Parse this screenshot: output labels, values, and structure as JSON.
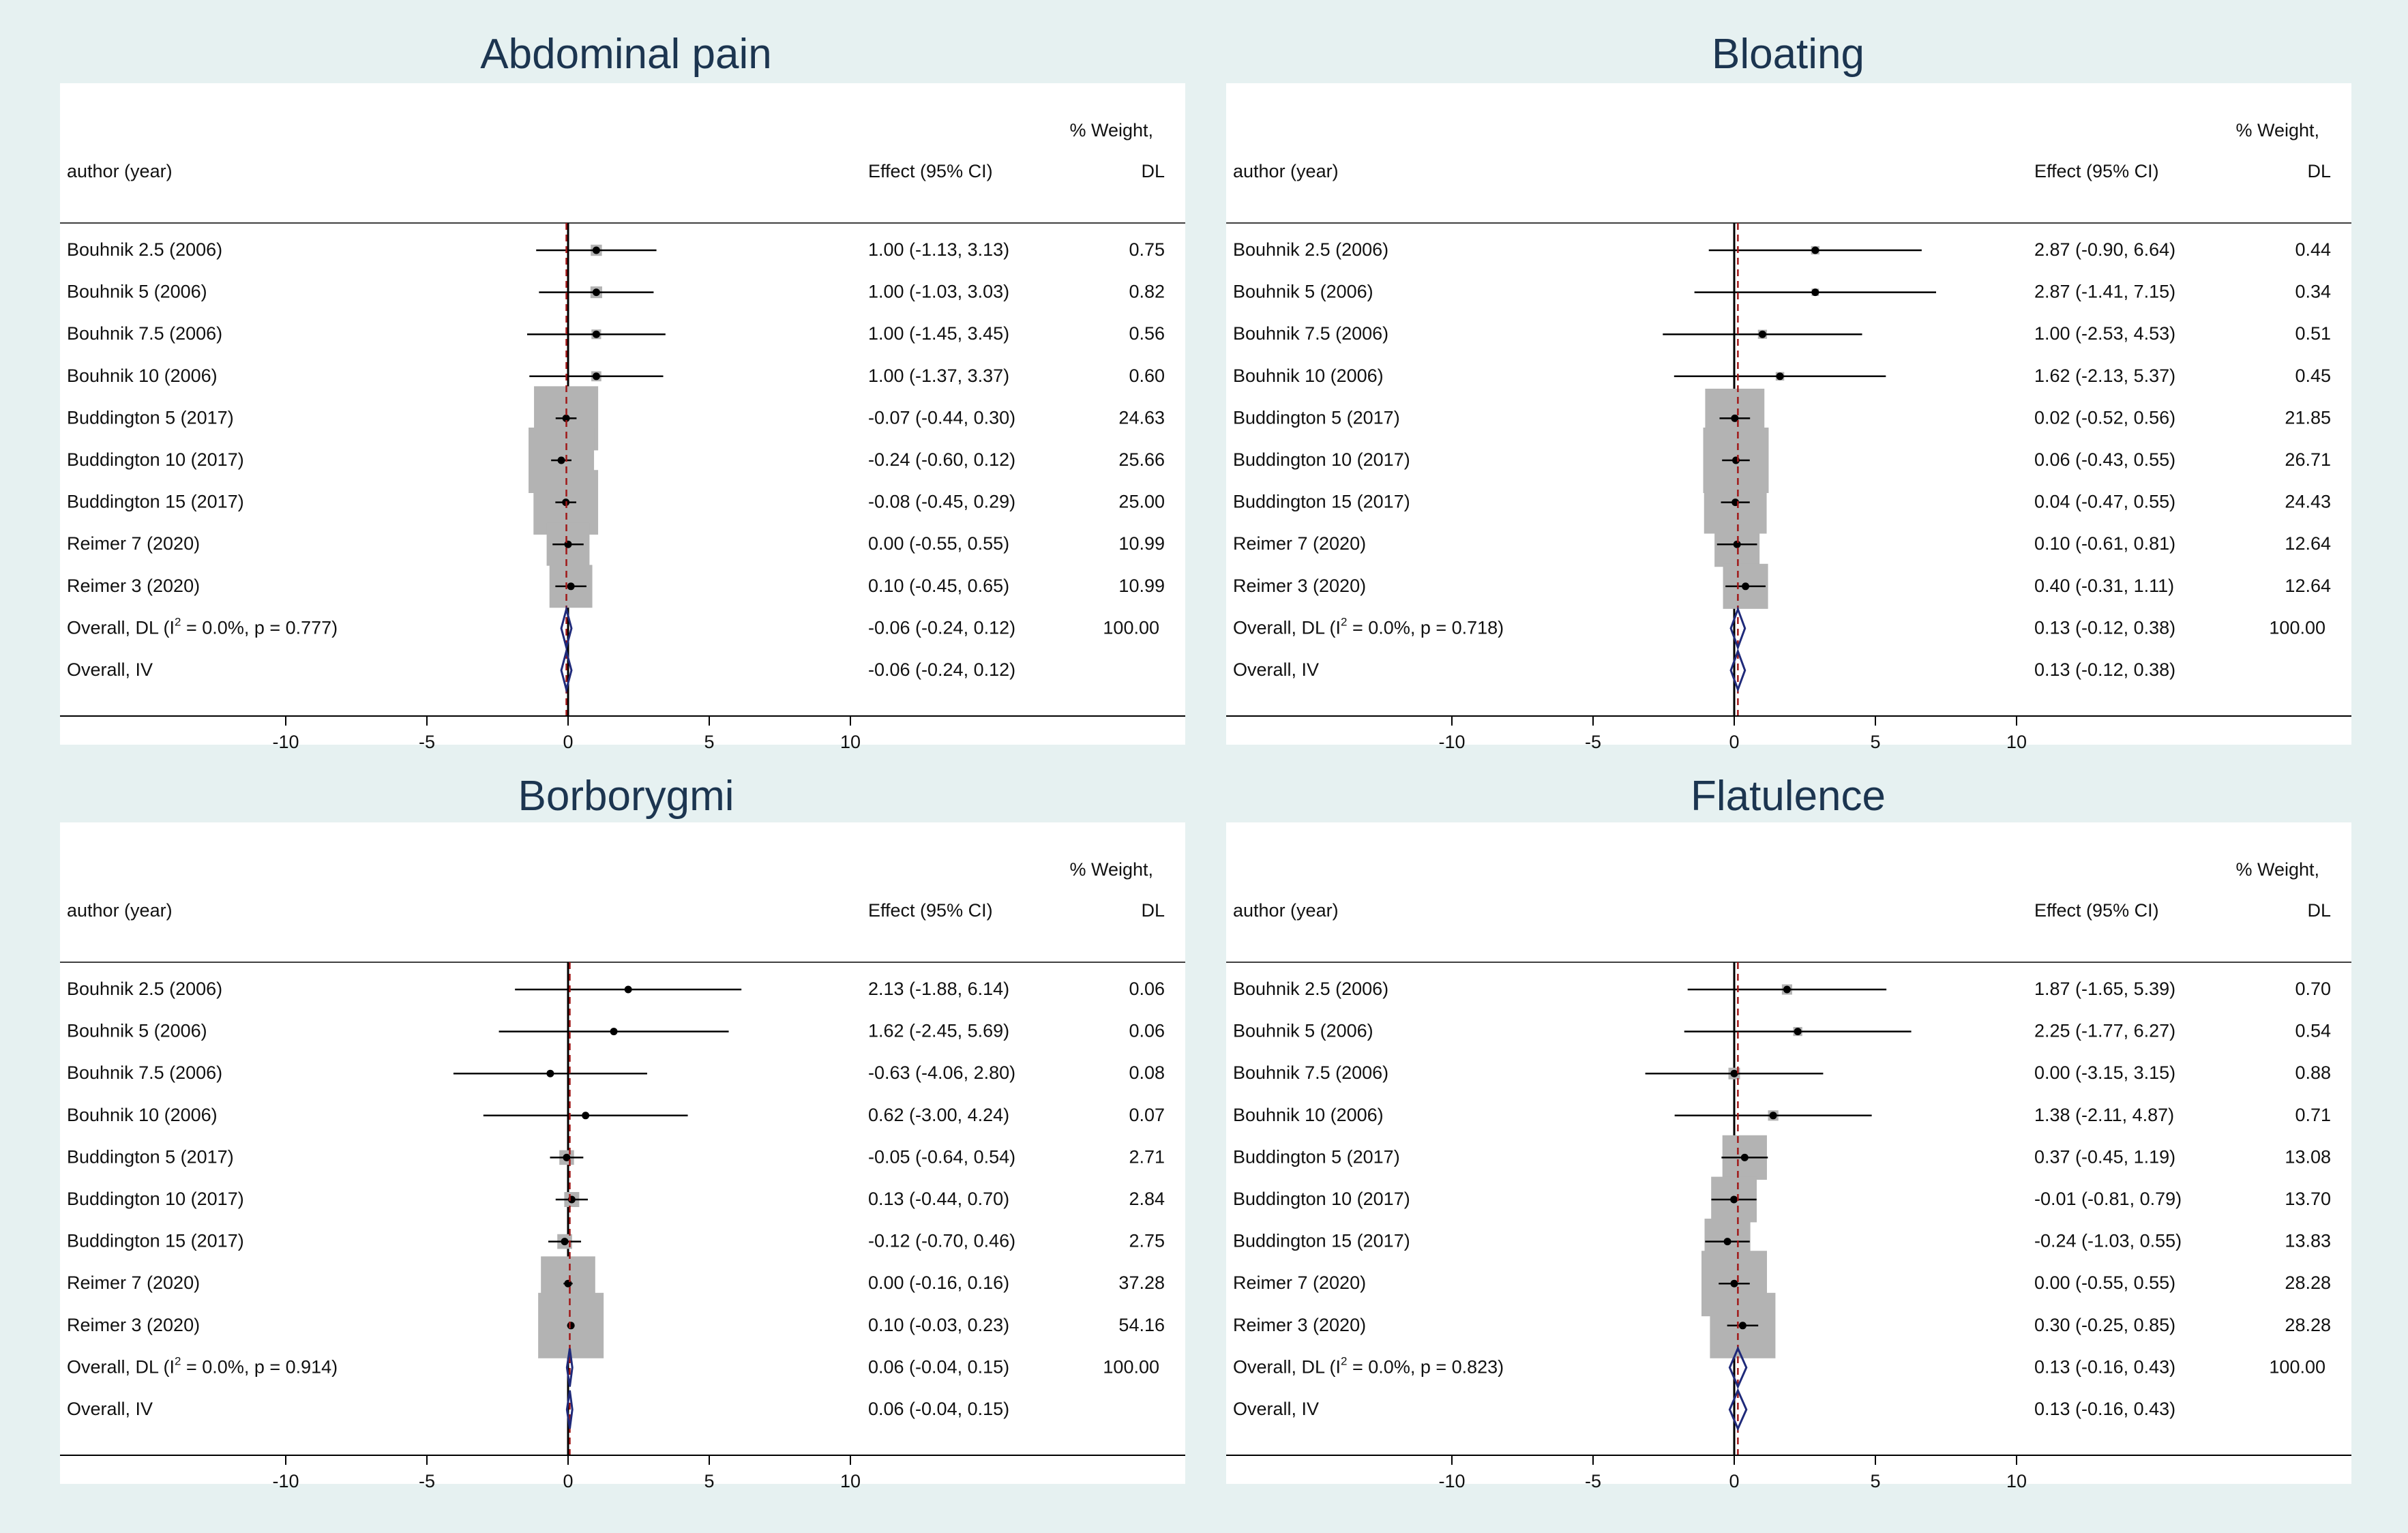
{
  "figure": {
    "background": "#e6f1f1",
    "plot_background": "#ffffff"
  },
  "labels": {
    "study_header": "author (year)",
    "effect_header": "Effect (95% CI)",
    "weight_header_line1": "% Weight,",
    "weight_header_line2": "DL"
  },
  "colors": {
    "box": "#b3b3b3",
    "ci_line": "#000000",
    "point": "#000000",
    "diamond": "#1f2a7a",
    "null_line": "#000000",
    "overall_line": "#a01818",
    "title": "#1c3550"
  },
  "chart_data": [
    {
      "type": "forest",
      "title": "Abdominal pain",
      "xlim": [
        -10,
        10
      ],
      "xticks": [
        -10,
        -5,
        0,
        5,
        10
      ],
      "null_line": 0,
      "overall_effect": -0.06,
      "studies": [
        {
          "label": "Bouhnik 2.5 (2006)",
          "es": 1.0,
          "lo": -1.13,
          "hi": 3.13,
          "ci_text": "1.00 (-1.13, 3.13)",
          "weight": 0.75,
          "weight_text": "0.75"
        },
        {
          "label": "Bouhnik 5 (2006)",
          "es": 1.0,
          "lo": -1.03,
          "hi": 3.03,
          "ci_text": "1.00 (-1.03, 3.03)",
          "weight": 0.82,
          "weight_text": "0.82"
        },
        {
          "label": "Bouhnik 7.5 (2006)",
          "es": 1.0,
          "lo": -1.45,
          "hi": 3.45,
          "ci_text": "1.00 (-1.45, 3.45)",
          "weight": 0.56,
          "weight_text": "0.56"
        },
        {
          "label": "Bouhnik 10 (2006)",
          "es": 1.0,
          "lo": -1.37,
          "hi": 3.37,
          "ci_text": "1.00 (-1.37, 3.37)",
          "weight": 0.6,
          "weight_text": "0.60"
        },
        {
          "label": "Buddington 5 (2017)",
          "es": -0.07,
          "lo": -0.44,
          "hi": 0.3,
          "ci_text": "-0.07 (-0.44, 0.30)",
          "weight": 24.63,
          "weight_text": "24.63"
        },
        {
          "label": "Buddington 10 (2017)",
          "es": -0.24,
          "lo": -0.6,
          "hi": 0.12,
          "ci_text": "-0.24 (-0.60, 0.12)",
          "weight": 25.66,
          "weight_text": "25.66"
        },
        {
          "label": "Buddington 15 (2017)",
          "es": -0.08,
          "lo": -0.45,
          "hi": 0.29,
          "ci_text": "-0.08 (-0.45, 0.29)",
          "weight": 25.0,
          "weight_text": "25.00"
        },
        {
          "label": "Reimer 7 (2020)",
          "es": 0.0,
          "lo": -0.55,
          "hi": 0.55,
          "ci_text": "0.00 (-0.55, 0.55)",
          "weight": 10.99,
          "weight_text": "10.99"
        },
        {
          "label": "Reimer 3 (2020)",
          "es": 0.1,
          "lo": -0.45,
          "hi": 0.65,
          "ci_text": "0.10 (-0.45, 0.65)",
          "weight": 10.99,
          "weight_text": "10.99"
        }
      ],
      "overall_dl": {
        "label_prefix": "Overall, DL (I",
        "label_sup": "2",
        "label_suffix": " = 0.0%, p = 0.777)",
        "es": -0.06,
        "lo": -0.24,
        "hi": 0.12,
        "ci_text": "-0.06 (-0.24, 0.12)",
        "weight_text": "100.00"
      },
      "overall_iv": {
        "label": "Overall, IV",
        "es": -0.06,
        "lo": -0.24,
        "hi": 0.12,
        "ci_text": "-0.06 (-0.24, 0.12)"
      }
    },
    {
      "type": "forest",
      "title": "Bloating",
      "xlim": [
        -10,
        10
      ],
      "xticks": [
        -10,
        -5,
        0,
        5,
        10
      ],
      "null_line": 0,
      "overall_effect": 0.13,
      "studies": [
        {
          "label": "Bouhnik 2.5 (2006)",
          "es": 2.87,
          "lo": -0.9,
          "hi": 6.64,
          "ci_text": "2.87 (-0.90, 6.64)",
          "weight": 0.44,
          "weight_text": "0.44"
        },
        {
          "label": "Bouhnik 5 (2006)",
          "es": 2.87,
          "lo": -1.41,
          "hi": 7.15,
          "ci_text": "2.87 (-1.41, 7.15)",
          "weight": 0.34,
          "weight_text": "0.34"
        },
        {
          "label": "Bouhnik 7.5 (2006)",
          "es": 1.0,
          "lo": -2.53,
          "hi": 4.53,
          "ci_text": "1.00 (-2.53, 4.53)",
          "weight": 0.51,
          "weight_text": "0.51"
        },
        {
          "label": "Bouhnik 10 (2006)",
          "es": 1.62,
          "lo": -2.13,
          "hi": 5.37,
          "ci_text": "1.62 (-2.13, 5.37)",
          "weight": 0.45,
          "weight_text": "0.45"
        },
        {
          "label": "Buddington 5 (2017)",
          "es": 0.02,
          "lo": -0.52,
          "hi": 0.56,
          "ci_text": "0.02 (-0.52, 0.56)",
          "weight": 21.85,
          "weight_text": "21.85"
        },
        {
          "label": "Buddington 10 (2017)",
          "es": 0.06,
          "lo": -0.43,
          "hi": 0.55,
          "ci_text": "0.06 (-0.43, 0.55)",
          "weight": 26.71,
          "weight_text": "26.71"
        },
        {
          "label": "Buddington 15 (2017)",
          "es": 0.04,
          "lo": -0.47,
          "hi": 0.55,
          "ci_text": "0.04 (-0.47, 0.55)",
          "weight": 24.43,
          "weight_text": "24.43"
        },
        {
          "label": "Reimer 7 (2020)",
          "es": 0.1,
          "lo": -0.61,
          "hi": 0.81,
          "ci_text": "0.10 (-0.61, 0.81)",
          "weight": 12.64,
          "weight_text": "12.64"
        },
        {
          "label": "Reimer 3 (2020)",
          "es": 0.4,
          "lo": -0.31,
          "hi": 1.11,
          "ci_text": "0.40 (-0.31, 1.11)",
          "weight": 12.64,
          "weight_text": "12.64"
        }
      ],
      "overall_dl": {
        "label_prefix": "Overall, DL (I",
        "label_sup": "2",
        "label_suffix": " = 0.0%, p = 0.718)",
        "es": 0.13,
        "lo": -0.12,
        "hi": 0.38,
        "ci_text": "0.13 (-0.12, 0.38)",
        "weight_text": "100.00"
      },
      "overall_iv": {
        "label": "Overall, IV",
        "es": 0.13,
        "lo": -0.12,
        "hi": 0.38,
        "ci_text": "0.13 (-0.12, 0.38)"
      }
    },
    {
      "type": "forest",
      "title": "Borborygmi",
      "xlim": [
        -10,
        10
      ],
      "xticks": [
        -10,
        -5,
        0,
        5,
        10
      ],
      "null_line": 0,
      "overall_effect": 0.06,
      "studies": [
        {
          "label": "Bouhnik 2.5 (2006)",
          "es": 2.13,
          "lo": -1.88,
          "hi": 6.14,
          "ci_text": "2.13 (-1.88, 6.14)",
          "weight": 0.06,
          "weight_text": "0.06"
        },
        {
          "label": "Bouhnik 5 (2006)",
          "es": 1.62,
          "lo": -2.45,
          "hi": 5.69,
          "ci_text": "1.62 (-2.45, 5.69)",
          "weight": 0.06,
          "weight_text": "0.06"
        },
        {
          "label": "Bouhnik 7.5 (2006)",
          "es": -0.63,
          "lo": -4.06,
          "hi": 2.8,
          "ci_text": "-0.63 (-4.06, 2.80)",
          "weight": 0.08,
          "weight_text": "0.08"
        },
        {
          "label": "Bouhnik 10 (2006)",
          "es": 0.62,
          "lo": -3.0,
          "hi": 4.24,
          "ci_text": "0.62 (-3.00, 4.24)",
          "weight": 0.07,
          "weight_text": "0.07"
        },
        {
          "label": "Buddington 5 (2017)",
          "es": -0.05,
          "lo": -0.64,
          "hi": 0.54,
          "ci_text": "-0.05 (-0.64, 0.54)",
          "weight": 2.71,
          "weight_text": "2.71"
        },
        {
          "label": "Buddington 10 (2017)",
          "es": 0.13,
          "lo": -0.44,
          "hi": 0.7,
          "ci_text": "0.13 (-0.44, 0.70)",
          "weight": 2.84,
          "weight_text": "2.84"
        },
        {
          "label": "Buddington 15 (2017)",
          "es": -0.12,
          "lo": -0.7,
          "hi": 0.46,
          "ci_text": "-0.12 (-0.70, 0.46)",
          "weight": 2.75,
          "weight_text": "2.75"
        },
        {
          "label": "Reimer 7 (2020)",
          "es": 0.0,
          "lo": -0.16,
          "hi": 0.16,
          "ci_text": "0.00 (-0.16, 0.16)",
          "weight": 37.28,
          "weight_text": "37.28"
        },
        {
          "label": "Reimer 3 (2020)",
          "es": 0.1,
          "lo": -0.03,
          "hi": 0.23,
          "ci_text": "0.10 (-0.03, 0.23)",
          "weight": 54.16,
          "weight_text": "54.16"
        }
      ],
      "overall_dl": {
        "label_prefix": "Overall, DL (I",
        "label_sup": "2",
        "label_suffix": " = 0.0%, p = 0.914)",
        "es": 0.06,
        "lo": -0.04,
        "hi": 0.15,
        "ci_text": "0.06 (-0.04, 0.15)",
        "weight_text": "100.00"
      },
      "overall_iv": {
        "label": "Overall, IV",
        "es": 0.06,
        "lo": -0.04,
        "hi": 0.15,
        "ci_text": "0.06 (-0.04, 0.15)"
      }
    },
    {
      "type": "forest",
      "title": "Flatulence",
      "xlim": [
        -10,
        10
      ],
      "xticks": [
        -10,
        -5,
        0,
        5,
        10
      ],
      "null_line": 0,
      "overall_effect": 0.13,
      "studies": [
        {
          "label": "Bouhnik 2.5 (2006)",
          "es": 1.87,
          "lo": -1.65,
          "hi": 5.39,
          "ci_text": "1.87 (-1.65, 5.39)",
          "weight": 0.7,
          "weight_text": "0.70"
        },
        {
          "label": "Bouhnik 5 (2006)",
          "es": 2.25,
          "lo": -1.77,
          "hi": 6.27,
          "ci_text": "2.25 (-1.77, 6.27)",
          "weight": 0.54,
          "weight_text": "0.54"
        },
        {
          "label": "Bouhnik 7.5 (2006)",
          "es": 0.0,
          "lo": -3.15,
          "hi": 3.15,
          "ci_text": "0.00 (-3.15, 3.15)",
          "weight": 0.88,
          "weight_text": "0.88"
        },
        {
          "label": "Bouhnik 10 (2006)",
          "es": 1.38,
          "lo": -2.11,
          "hi": 4.87,
          "ci_text": "1.38 (-2.11, 4.87)",
          "weight": 0.71,
          "weight_text": "0.71"
        },
        {
          "label": "Buddington 5 (2017)",
          "es": 0.37,
          "lo": -0.45,
          "hi": 1.19,
          "ci_text": "0.37 (-0.45, 1.19)",
          "weight": 13.08,
          "weight_text": "13.08"
        },
        {
          "label": "Buddington 10 (2017)",
          "es": -0.01,
          "lo": -0.81,
          "hi": 0.79,
          "ci_text": "-0.01 (-0.81, 0.79)",
          "weight": 13.7,
          "weight_text": "13.70"
        },
        {
          "label": "Buddington 15 (2017)",
          "es": -0.24,
          "lo": -1.03,
          "hi": 0.55,
          "ci_text": "-0.24 (-1.03, 0.55)",
          "weight": 13.83,
          "weight_text": "13.83"
        },
        {
          "label": "Reimer 7 (2020)",
          "es": 0.0,
          "lo": -0.55,
          "hi": 0.55,
          "ci_text": "0.00 (-0.55, 0.55)",
          "weight": 28.28,
          "weight_text": "28.28"
        },
        {
          "label": "Reimer 3 (2020)",
          "es": 0.3,
          "lo": -0.25,
          "hi": 0.85,
          "ci_text": "0.30 (-0.25, 0.85)",
          "weight": 28.28,
          "weight_text": "28.28"
        }
      ],
      "overall_dl": {
        "label_prefix": "Overall, DL (I",
        "label_sup": "2",
        "label_suffix": " = 0.0%, p = 0.823)",
        "es": 0.13,
        "lo": -0.16,
        "hi": 0.43,
        "ci_text": "0.13 (-0.16, 0.43)",
        "weight_text": "100.00"
      },
      "overall_iv": {
        "label": "Overall, IV",
        "es": 0.13,
        "lo": -0.16,
        "hi": 0.43,
        "ci_text": "0.13 (-0.16, 0.43)"
      }
    }
  ]
}
